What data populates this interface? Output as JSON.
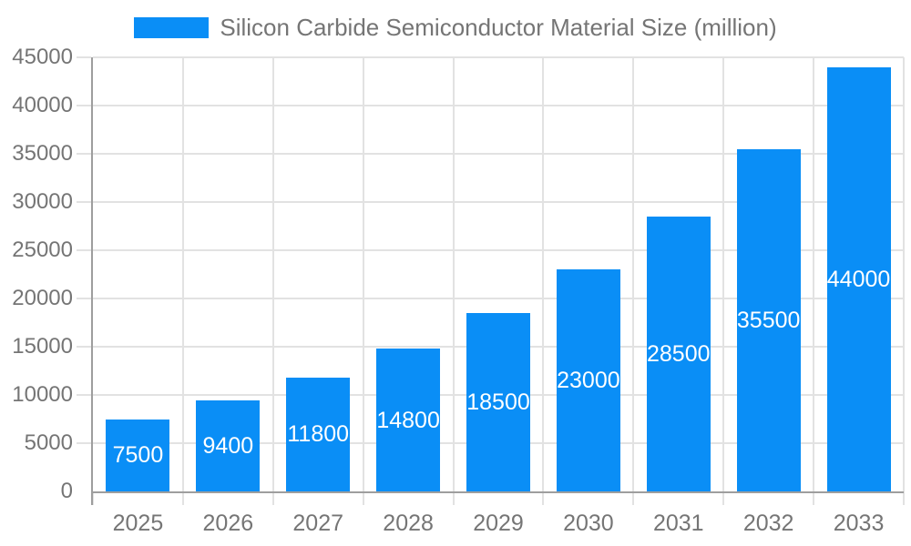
{
  "legend": {
    "label": "Silicon Carbide Semiconductor Material Size (million)"
  },
  "chart_data": {
    "type": "bar",
    "categories": [
      "2025",
      "2026",
      "2027",
      "2028",
      "2029",
      "2030",
      "2031",
      "2032",
      "2033"
    ],
    "series": [
      {
        "name": "Silicon Carbide Semiconductor Material Size (million)",
        "values": [
          7500,
          9400,
          11800,
          14800,
          18500,
          23000,
          28500,
          35500,
          44000
        ]
      }
    ],
    "title": "Silicon Carbide Semiconductor Material Size (million)",
    "xlabel": "",
    "ylabel": "",
    "ylim": [
      0,
      45000
    ],
    "ytick_step": 5000,
    "grid": true,
    "legend_position": "top",
    "bar_label_position": "inside-center",
    "colors": {
      "bar": "#0a8ef6",
      "bar_label": "#ffffff",
      "axis": "#9e9e9e",
      "grid": "#e2e2e2",
      "tick_label": "#757575",
      "legend_text": "#757575",
      "background": "#ffffff"
    }
  }
}
